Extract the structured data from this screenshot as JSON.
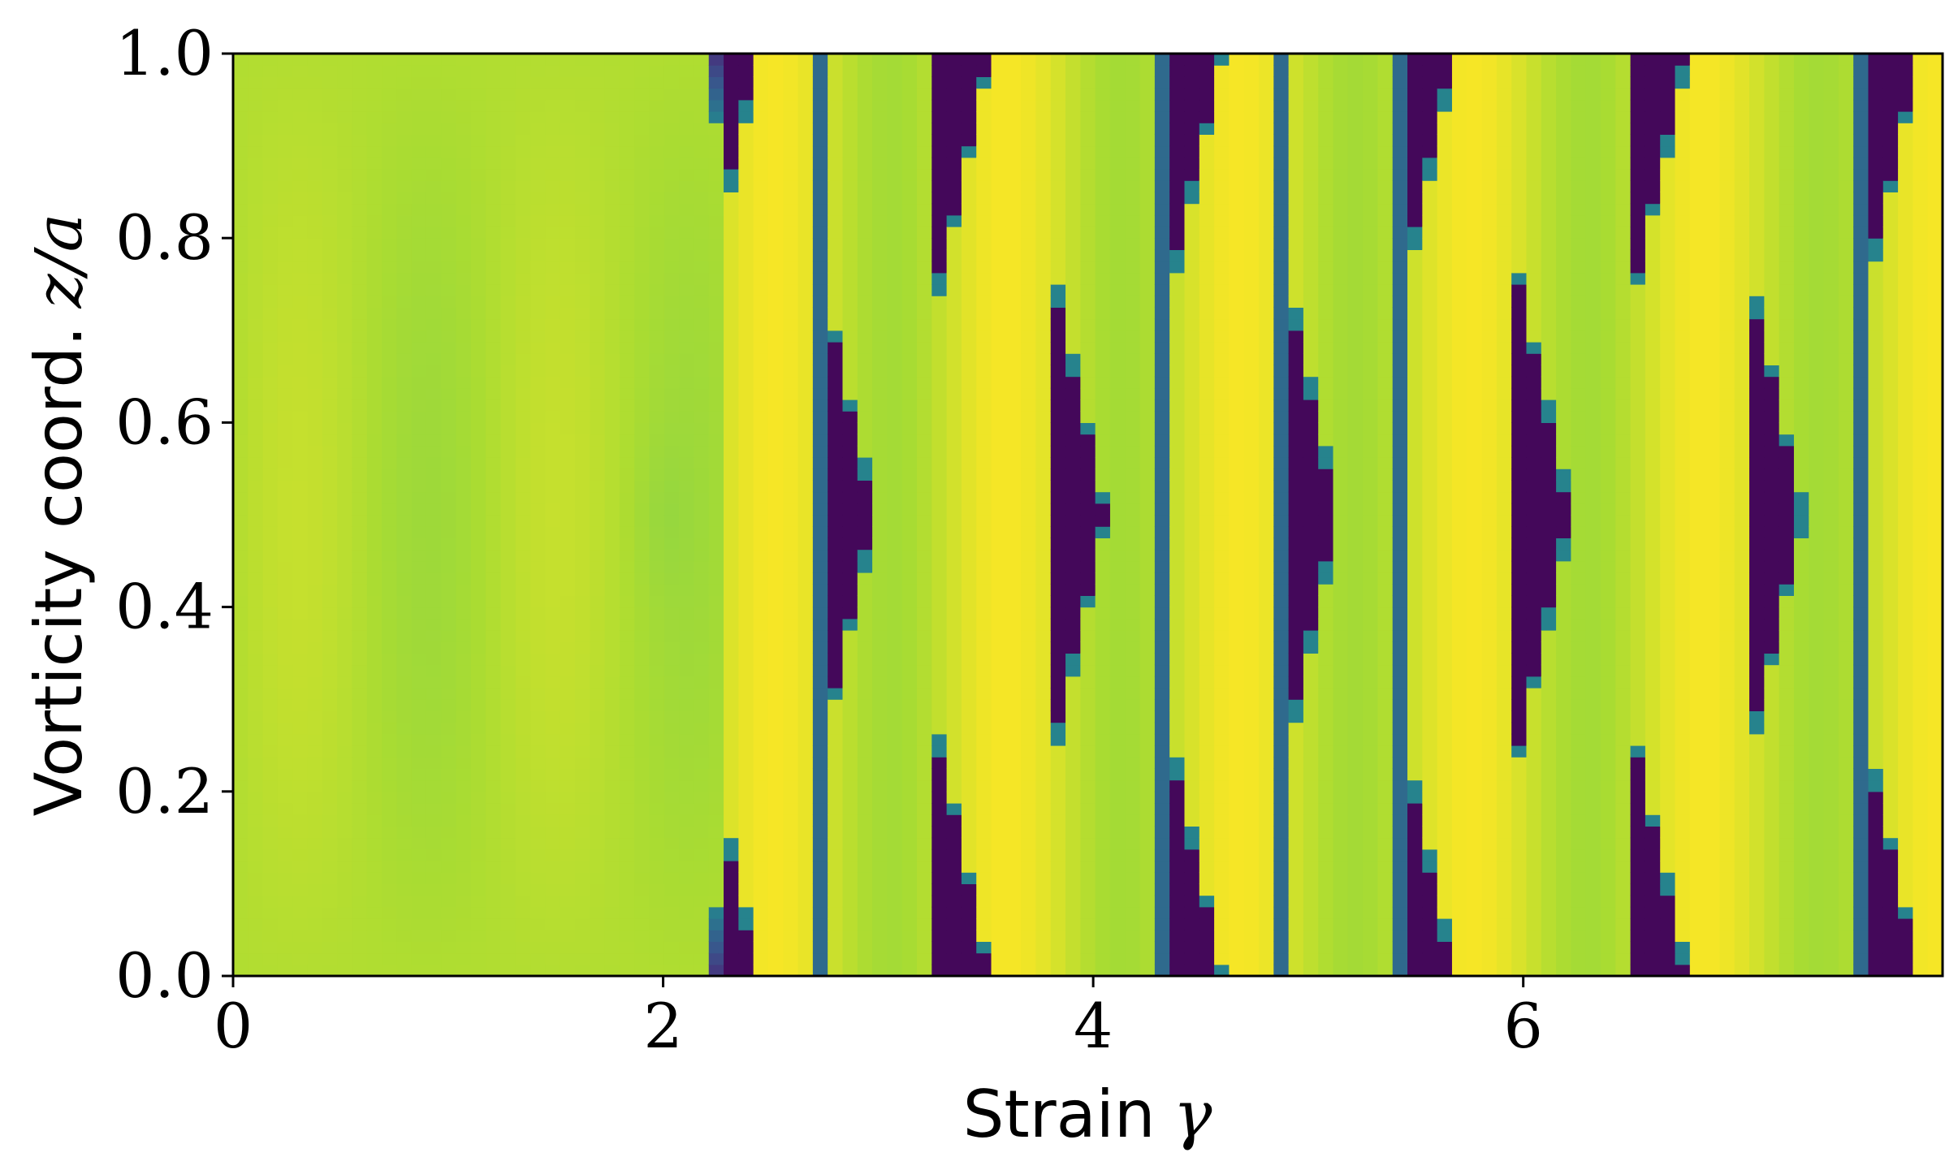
{
  "chart_data": {
    "type": "heatmap",
    "title": "",
    "xlabel": "Strain",
    "xlabel_symbol": "γ",
    "ylabel": "Vorticity coord.",
    "ylabel_symbol": "z/a",
    "xlim": [
      0,
      7.95
    ],
    "ylim": [
      0,
      1.0
    ],
    "x_ticks": [
      0,
      2,
      4,
      6
    ],
    "x_tick_labels": [
      "0",
      "2",
      "4",
      "6"
    ],
    "y_ticks": [
      0,
      0.2,
      0.4,
      0.6,
      0.8,
      1.0
    ],
    "y_tick_labels": [
      "0.0",
      "0.2",
      "0.4",
      "0.6",
      "0.8",
      "1.0"
    ],
    "grid": false,
    "colormap": "viridis",
    "colorbar": false,
    "color_range": [
      0,
      1
    ],
    "grid_cells": {
      "nx": 115,
      "ny": 80
    },
    "pattern": {
      "onset_strain": 2.3,
      "period": 1.08,
      "center_triangles_apex_strain": [
        3.07,
        4.14,
        5.22,
        6.3,
        7.38
      ],
      "edge_triangles_apex_strain": [
        2.53,
        3.6,
        4.68,
        5.76,
        6.84,
        7.92
      ]
    },
    "colors": {
      "yellow": "#fde725",
      "yellow_green": "#d8e219",
      "light_green": "#a5db36",
      "teal": "#1fa187",
      "blue": "#31688e",
      "dark_purple": "#440154"
    }
  }
}
